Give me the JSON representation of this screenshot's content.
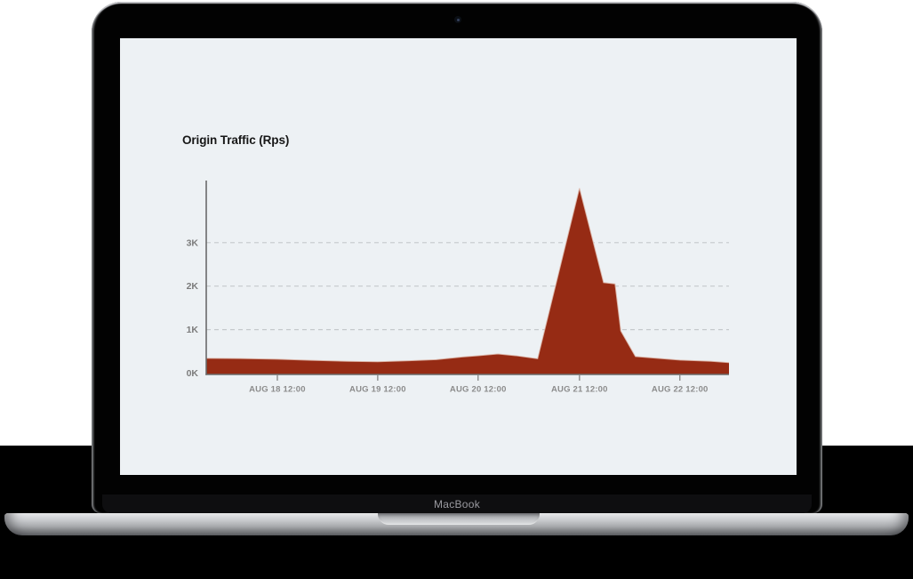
{
  "device": {
    "label": "MacBook"
  },
  "colors": {
    "background_top": "#ffffff",
    "background_bottom": "#000000",
    "screen_bg": "#edf1f4",
    "area": "#962b14",
    "area_edge": "#ddb6a8",
    "axis": "#6a6a6a",
    "grid": "#c5c9cc",
    "tick_label": "#8c8c8c",
    "y_label": "#7c7c7c"
  },
  "chart_data": {
    "type": "area",
    "title": "Origin Traffic (Rps)",
    "legend_position": "none",
    "grid": "dashed-horizontal",
    "ylim": [
      0,
      4430
    ],
    "y_ticks": [
      {
        "label": "0K",
        "value": 0
      },
      {
        "label": "1K",
        "value": 1000
      },
      {
        "label": "2K",
        "value": 2000
      },
      {
        "label": "3K",
        "value": 3000
      }
    ],
    "x_ticks": [
      {
        "label": "AUG 18 12:00",
        "f": 0.136
      },
      {
        "label": "AUG 19 12:00",
        "f": 0.328
      },
      {
        "label": "AUG 20 12:00",
        "f": 0.52
      },
      {
        "label": "AUG 21 12:00",
        "f": 0.714
      },
      {
        "label": "AUG 22 12:00",
        "f": 0.906
      }
    ],
    "series": [
      {
        "name": "Origin Traffic",
        "unit": "Rps",
        "peak_rps": 4250,
        "points": [
          [
            0.0,
            340
          ],
          [
            0.065,
            335
          ],
          [
            0.136,
            320
          ],
          [
            0.2,
            295
          ],
          [
            0.27,
            270
          ],
          [
            0.328,
            260
          ],
          [
            0.388,
            285
          ],
          [
            0.44,
            310
          ],
          [
            0.49,
            370
          ],
          [
            0.52,
            400
          ],
          [
            0.558,
            440
          ],
          [
            0.592,
            400
          ],
          [
            0.634,
            330
          ],
          [
            0.714,
            4250
          ],
          [
            0.76,
            2080
          ],
          [
            0.782,
            2050
          ],
          [
            0.793,
            970
          ],
          [
            0.821,
            380
          ],
          [
            0.906,
            300
          ],
          [
            0.966,
            270
          ],
          [
            1.0,
            240
          ]
        ]
      }
    ]
  }
}
